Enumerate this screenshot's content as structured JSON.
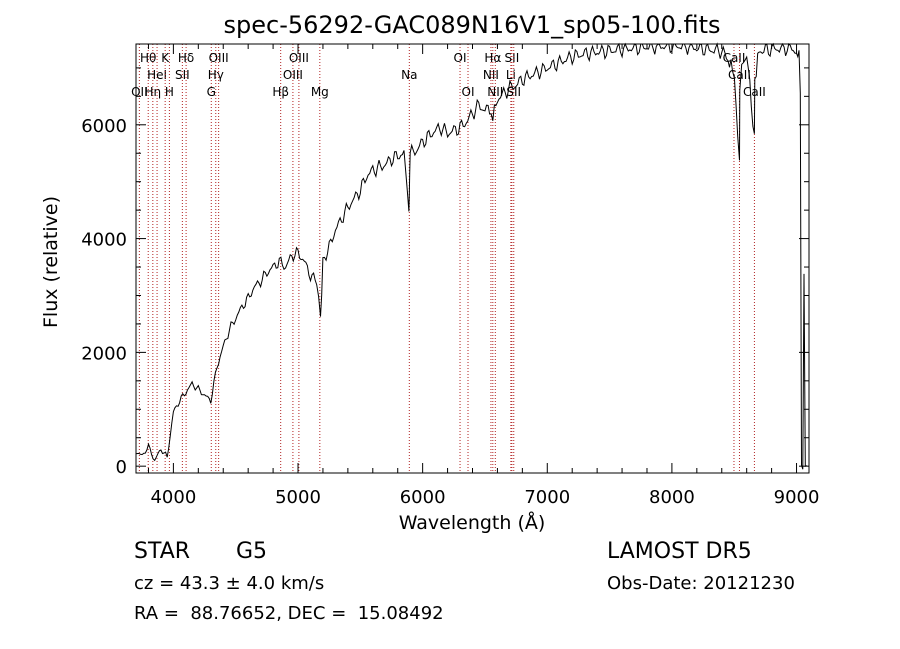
{
  "chart_data": {
    "type": "line",
    "title": "spec-56292-GAC089N16V1_sp05-100.fits",
    "xlabel": "Wavelength (Å)",
    "ylabel": "Flux (relative)",
    "xlim": [
      3700,
      9100
    ],
    "ylim": [
      -120,
      7420
    ],
    "xticks": [
      4000,
      5000,
      6000,
      7000,
      8000,
      9000
    ],
    "yticks": [
      0,
      2000,
      4000,
      6000
    ],
    "grid": false,
    "line_color": "#000000",
    "marker_color": "#b22222",
    "series": [
      {
        "x": [
          3700,
          3750,
          3800,
          3850,
          3900,
          3950,
          4000,
          4050,
          4100,
          4150,
          4200,
          4250,
          4300,
          4350,
          4400,
          4450,
          4500,
          4550,
          4600,
          4650,
          4700,
          4750,
          4800,
          4850,
          4900,
          4950,
          5000,
          5050,
          5100,
          5150,
          5180,
          5200,
          5250,
          5300,
          5350,
          5400,
          5450,
          5500,
          5550,
          5600,
          5650,
          5700,
          5750,
          5800,
          5850,
          5890,
          5893,
          5896,
          5900,
          5950,
          6000,
          6050,
          6100,
          6150,
          6200,
          6250,
          6300,
          6350,
          6400,
          6450,
          6500,
          6550,
          6563,
          6600,
          6650,
          6700,
          6750,
          6800,
          6850,
          6900,
          6950,
          7000,
          7050,
          7100,
          7150,
          7200,
          7300,
          7400,
          7500,
          7600,
          7700,
          7800,
          7900,
          8000,
          8100,
          8200,
          8300,
          8400,
          8450,
          8498,
          8500,
          8542,
          8545,
          8560,
          8600,
          8662,
          8665,
          8700,
          8800,
          8900,
          8950,
          9000,
          9020,
          9030,
          9040,
          9050,
          9060,
          9070,
          9080,
          9085
        ],
        "y": [
          250,
          180,
          350,
          100,
          300,
          150,
          950,
          1150,
          1300,
          1450,
          1350,
          1250,
          1150,
          1750,
          2100,
          2400,
          2600,
          2800,
          2950,
          3150,
          3250,
          3400,
          3500,
          3600,
          3500,
          3700,
          3750,
          3600,
          3350,
          3250,
          2600,
          3600,
          3850,
          4150,
          4350,
          4550,
          4700,
          4850,
          5100,
          5200,
          5250,
          5300,
          5400,
          5450,
          5500,
          4500,
          4800,
          5200,
          5500,
          5550,
          5700,
          5800,
          5900,
          5950,
          5850,
          5900,
          5950,
          6050,
          6200,
          6350,
          6250,
          6300,
          6100,
          6450,
          6550,
          6650,
          6700,
          6800,
          6850,
          6900,
          6950,
          7000,
          7050,
          7100,
          7150,
          7200,
          7250,
          7280,
          7300,
          7330,
          7350,
          7370,
          7380,
          7390,
          7380,
          7350,
          7320,
          7300,
          7150,
          6900,
          6800,
          5300,
          6600,
          7200,
          7250,
          5800,
          6800,
          7300,
          7330,
          7350,
          7340,
          7300,
          7200,
          6600,
          0,
          0,
          3300,
          0,
          0,
          0
        ]
      }
    ],
    "line_markers": [
      {
        "wavelength": 3727,
        "label": "OII",
        "row": 3
      },
      {
        "wavelength": 3798,
        "label": "Hθ",
        "row": 1
      },
      {
        "wavelength": 3835,
        "label": "Hη",
        "row": 3
      },
      {
        "wavelength": 3869,
        "label": "HeI",
        "row": 2
      },
      {
        "wavelength": 3934,
        "label": "K",
        "row": 1
      },
      {
        "wavelength": 3968,
        "label": "H",
        "row": 3
      },
      {
        "wavelength": 4072,
        "label": "SII",
        "row": 2
      },
      {
        "wavelength": 4102,
        "label": "Hδ",
        "row": 1
      },
      {
        "wavelength": 4304,
        "label": "G",
        "row": 3
      },
      {
        "wavelength": 4340,
        "label": "Hγ",
        "row": 2
      },
      {
        "wavelength": 4363,
        "label": "OIII",
        "row": 1
      },
      {
        "wavelength": 4861,
        "label": "Hβ",
        "row": 3
      },
      {
        "wavelength": 4959,
        "label": "OIII",
        "row": 2
      },
      {
        "wavelength": 5007,
        "label": "OIII",
        "row": 1
      },
      {
        "wavelength": 5175,
        "label": "Mg",
        "row": 3
      },
      {
        "wavelength": 5893,
        "label": "Na",
        "row": 2
      },
      {
        "wavelength": 6300,
        "label": "OI",
        "row": 1
      },
      {
        "wavelength": 6364,
        "label": "OI",
        "row": 3
      },
      {
        "wavelength": 6548,
        "label": "NII",
        "row": 2
      },
      {
        "wavelength": 6563,
        "label": "Hα",
        "row": 1
      },
      {
        "wavelength": 6583,
        "label": "NII",
        "row": 3
      },
      {
        "wavelength": 6708,
        "label": "Li",
        "row": 2
      },
      {
        "wavelength": 6716,
        "label": "SII",
        "row": 1
      },
      {
        "wavelength": 6731,
        "label": "SII",
        "row": 3
      },
      {
        "wavelength": 8498,
        "label": "CaII",
        "row": 1
      },
      {
        "wavelength": 8542,
        "label": "CaII",
        "row": 2
      },
      {
        "wavelength": 8662,
        "label": "CaII",
        "row": 3
      }
    ]
  },
  "info": {
    "class_label": "STAR",
    "subclass_label": "G5",
    "cz_text": "cz = 43.3 ± 4.0 km/s",
    "coords_text": "RA =  88.76652, DEC =  15.08492",
    "survey_text": "LAMOST DR5",
    "obs_date_text": "Obs-Date: 20121230"
  }
}
